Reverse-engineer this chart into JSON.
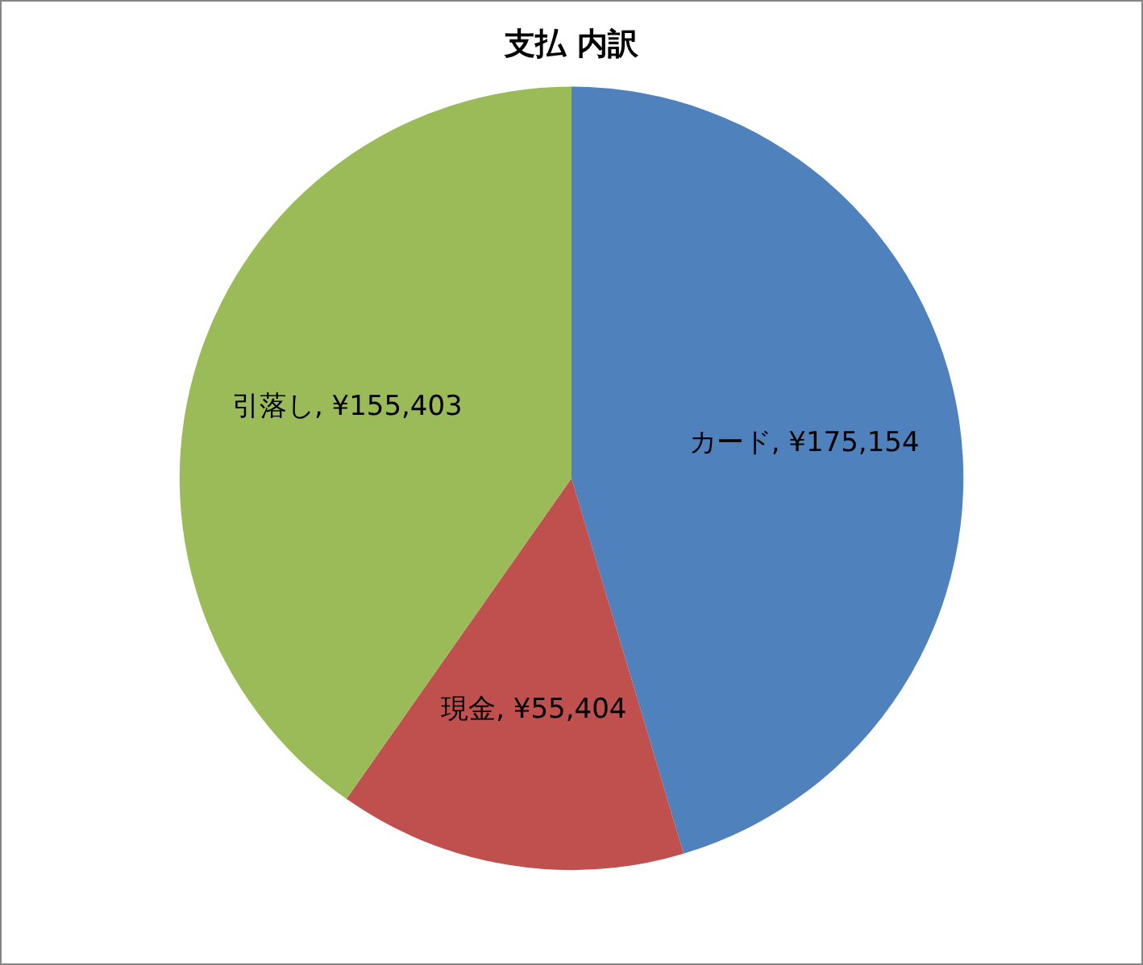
{
  "chart_data": {
    "type": "pie",
    "title": "支払 内訳",
    "categories": [
      "カード",
      "現金",
      "引落し"
    ],
    "values": [
      175154,
      55404,
      155403
    ],
    "colors": [
      "#4f81bd",
      "#c0504d",
      "#9bbb59"
    ],
    "value_labels": [
      "¥175,154",
      "¥55,404",
      "¥155,403"
    ],
    "legend": false
  }
}
